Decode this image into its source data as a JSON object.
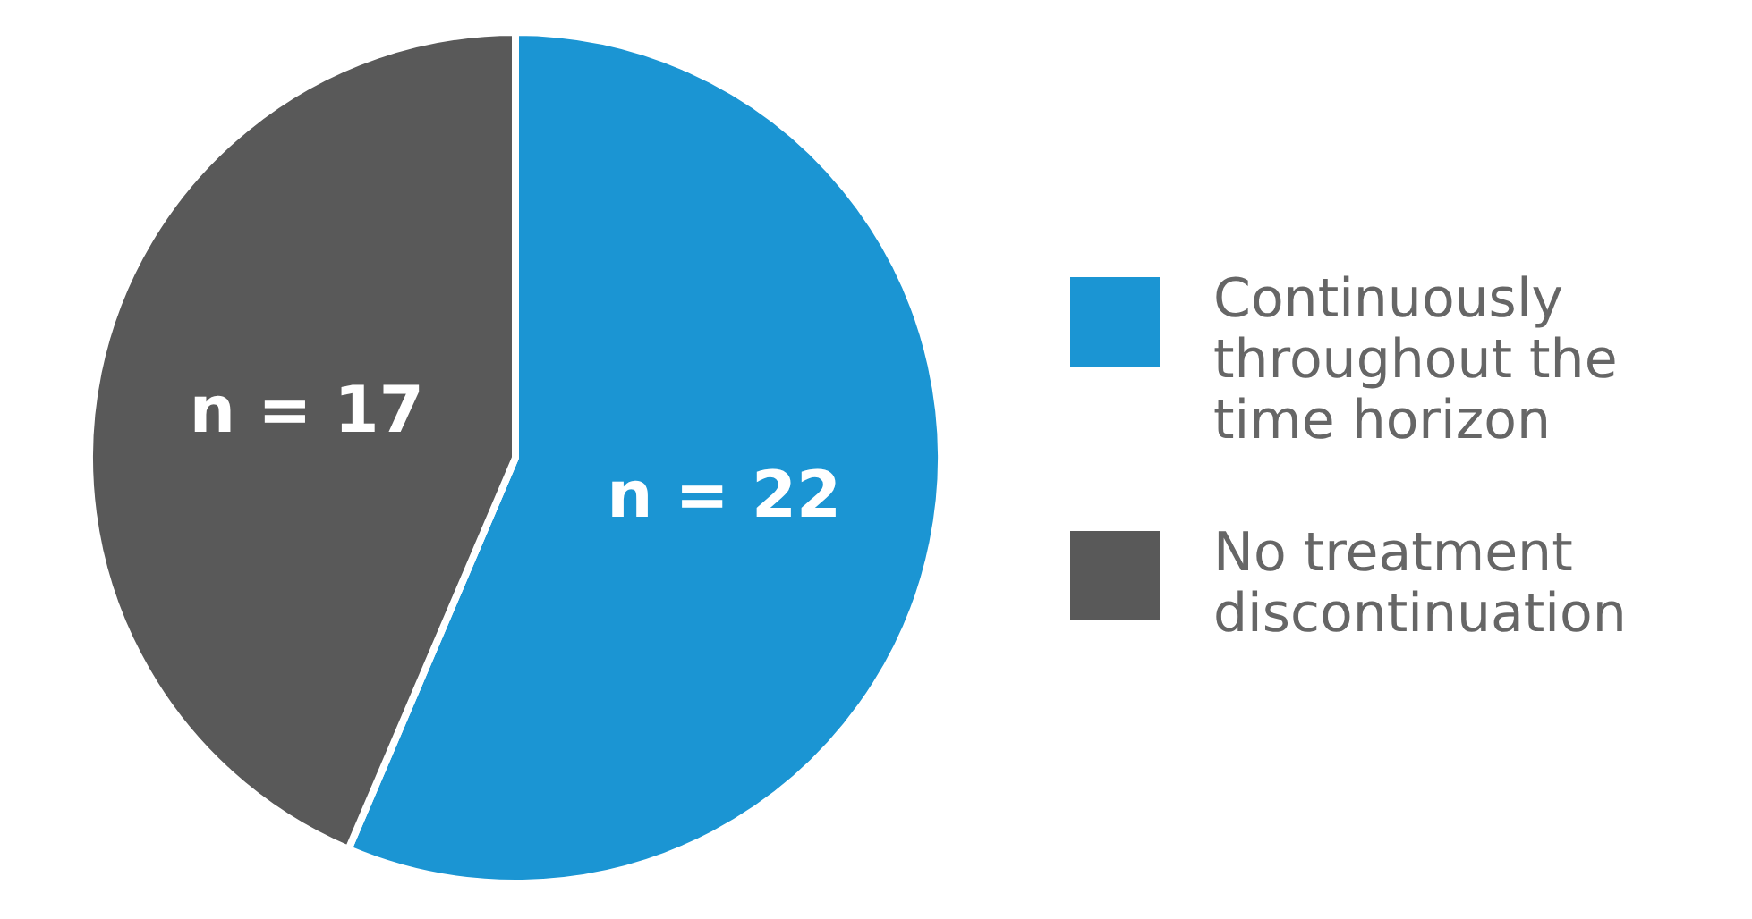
{
  "chart_data": {
    "type": "pie",
    "categories": [
      "Continuously throughout the time horizon",
      "No treatment discontinuation"
    ],
    "values": [
      22,
      17
    ],
    "colors": [
      "#1b95d3",
      "#595959"
    ],
    "value_labels": [
      "n = 22",
      "n = 17"
    ],
    "legend": "right"
  }
}
